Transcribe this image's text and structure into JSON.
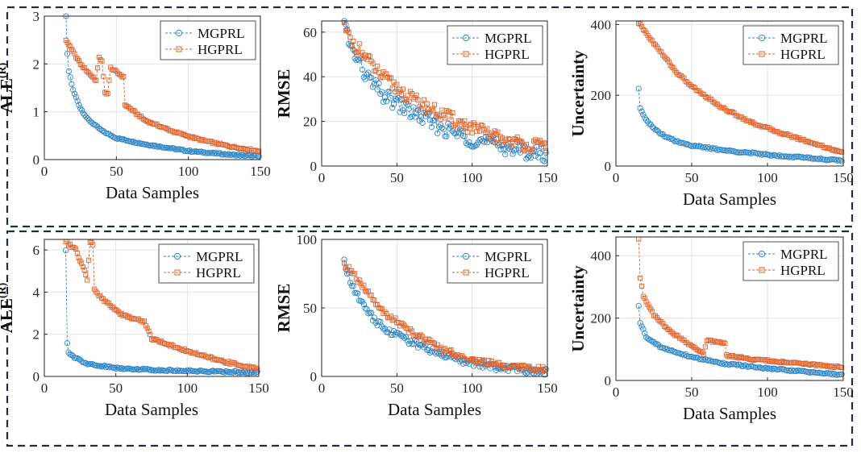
{
  "colors": {
    "mgprl": "#2e86c8",
    "hgprl": "#e0622a",
    "grid": "#e3e3e3",
    "frame": "#1e2d3d"
  },
  "sub_label": "(R)",
  "chart_data": [
    {
      "type": "scatter",
      "row": 0,
      "col": 0,
      "xlabel": "Data Samples",
      "ylabel": "ALE",
      "ylabel_sup": "(R)",
      "xlim": [
        0,
        150
      ],
      "ylim": [
        0,
        3
      ],
      "xticks": [
        "0",
        "50",
        "100",
        "150"
      ],
      "yticks": [
        "0",
        "1",
        "2",
        "3"
      ],
      "xtick_values": [
        0,
        50,
        100,
        150
      ],
      "ytick_values": [
        0,
        1,
        2,
        3
      ],
      "legend": [
        "MGPRL",
        "HGPRL"
      ],
      "legend_position": "top-right",
      "series": [
        {
          "name": "MGPRL",
          "x_start": 15,
          "x_end": 149,
          "keypoints": [
            [
              15,
              3.0
            ],
            [
              16,
              2.2
            ],
            [
              17,
              1.85
            ],
            [
              20,
              1.45
            ],
            [
              25,
              1.08
            ],
            [
              30,
              0.85
            ],
            [
              40,
              0.6
            ],
            [
              50,
              0.45
            ],
            [
              70,
              0.32
            ],
            [
              100,
              0.18
            ],
            [
              130,
              0.1
            ],
            [
              149,
              0.07
            ]
          ],
          "noise": 0.015
        },
        {
          "name": "HGPRL",
          "x_start": 15,
          "x_end": 149,
          "keypoints": [
            [
              15,
              2.5
            ],
            [
              25,
              2.0
            ],
            [
              36,
              1.65
            ],
            [
              38,
              2.15
            ],
            [
              40,
              2.05
            ],
            [
              42,
              1.4
            ],
            [
              44,
              1.38
            ],
            [
              46,
              1.92
            ],
            [
              55,
              1.72
            ],
            [
              56,
              1.15
            ],
            [
              70,
              0.82
            ],
            [
              90,
              0.58
            ],
            [
              110,
              0.4
            ],
            [
              130,
              0.27
            ],
            [
              149,
              0.18
            ]
          ],
          "noise": 0.02
        }
      ]
    },
    {
      "type": "scatter",
      "row": 0,
      "col": 1,
      "xlabel": "",
      "ylabel": "RMSE",
      "ylabel_sup": "",
      "xlim": [
        0,
        150
      ],
      "ylim": [
        0,
        65
      ],
      "xticks": [
        "0",
        "50",
        "100",
        "150"
      ],
      "yticks": [
        "0",
        "20",
        "40",
        "60"
      ],
      "xtick_values": [
        0,
        50,
        100,
        150
      ],
      "ytick_values": [
        0,
        20,
        40,
        60
      ],
      "legend": [
        "MGPRL",
        "HGPRL"
      ],
      "legend_position": "top-right",
      "series": [
        {
          "name": "MGPRL",
          "x_start": 15,
          "x_end": 149,
          "keypoints": [
            [
              15,
              64
            ],
            [
              20,
              52
            ],
            [
              30,
              40
            ],
            [
              40,
              32
            ],
            [
              60,
              24
            ],
            [
              80,
              17
            ],
            [
              100,
              12
            ],
            [
              120,
              9
            ],
            [
              140,
              6
            ],
            [
              149,
              5
            ]
          ],
          "noise": 3.5
        },
        {
          "name": "HGPRL",
          "x_start": 15,
          "x_end": 149,
          "keypoints": [
            [
              15,
              62
            ],
            [
              20,
              56
            ],
            [
              30,
              48
            ],
            [
              40,
              40
            ],
            [
              60,
              30
            ],
            [
              80,
              23
            ],
            [
              100,
              17
            ],
            [
              120,
              12
            ],
            [
              140,
              9
            ],
            [
              149,
              9
            ]
          ],
          "noise": 3.0
        }
      ]
    },
    {
      "type": "scatter",
      "row": 0,
      "col": 2,
      "xlabel": "Data Samples",
      "ylabel": "Uncertainty",
      "ylabel_sup": "",
      "xlim": [
        0,
        150
      ],
      "ylim": [
        0,
        410
      ],
      "xticks": [
        "0",
        "50",
        "100",
        "150"
      ],
      "yticks": [
        "0",
        "200",
        "400"
      ],
      "xtick_values": [
        0,
        50,
        100,
        150
      ],
      "ytick_values": [
        0,
        200,
        400
      ],
      "legend": [
        "MGPRL",
        "HGPRL"
      ],
      "legend_position": "top-right",
      "series": [
        {
          "name": "MGPRL",
          "x_start": 15,
          "x_end": 149,
          "keypoints": [
            [
              15,
              218
            ],
            [
              16,
              165
            ],
            [
              20,
              130
            ],
            [
              25,
              105
            ],
            [
              30,
              90
            ],
            [
              40,
              70
            ],
            [
              50,
              58
            ],
            [
              70,
              45
            ],
            [
              100,
              32
            ],
            [
              130,
              22
            ],
            [
              149,
              15
            ]
          ],
          "noise": 2.5
        },
        {
          "name": "HGPRL",
          "x_start": 15,
          "x_end": 149,
          "keypoints": [
            [
              15,
              405
            ],
            [
              20,
              375
            ],
            [
              30,
              320
            ],
            [
              40,
              265
            ],
            [
              50,
              225
            ],
            [
              70,
              165
            ],
            [
              90,
              122
            ],
            [
              110,
              92
            ],
            [
              130,
              65
            ],
            [
              149,
              38
            ]
          ],
          "noise": 3.0
        }
      ]
    },
    {
      "type": "scatter",
      "row": 1,
      "col": 0,
      "xlabel": "Data Samples",
      "ylabel": "ALE",
      "ylabel_sup": "(R)",
      "xlim": [
        0,
        150
      ],
      "ylim": [
        0,
        6.5
      ],
      "xticks": [
        "0",
        "50",
        "100",
        "150"
      ],
      "yticks": [
        "0",
        "2",
        "4",
        "6"
      ],
      "xtick_values": [
        0,
        50,
        100,
        150
      ],
      "ytick_values": [
        0,
        2,
        4,
        6
      ],
      "legend": [
        "MGPRL",
        "HGPRL"
      ],
      "legend_position": "top-right",
      "series": [
        {
          "name": "MGPRL",
          "x_start": 15,
          "x_end": 149,
          "keypoints": [
            [
              15,
              6.0
            ],
            [
              16,
              1.6
            ],
            [
              17,
              1.1
            ],
            [
              20,
              0.95
            ],
            [
              30,
              0.6
            ],
            [
              50,
              0.4
            ],
            [
              80,
              0.3
            ],
            [
              110,
              0.25
            ],
            [
              149,
              0.18
            ]
          ],
          "noise": 0.04
        },
        {
          "name": "HGPRL",
          "x_start": 15,
          "x_end": 149,
          "keypoints": [
            [
              15,
              6.4
            ],
            [
              22,
              6.0
            ],
            [
              28,
              5.0
            ],
            [
              30,
              4.6
            ],
            [
              32,
              6.4
            ],
            [
              34,
              6.3
            ],
            [
              35,
              4.1
            ],
            [
              40,
              3.7
            ],
            [
              55,
              2.9
            ],
            [
              70,
              2.6
            ],
            [
              75,
              1.8
            ],
            [
              100,
              1.2
            ],
            [
              120,
              0.8
            ],
            [
              149,
              0.35
            ]
          ],
          "noise": 0.06
        }
      ]
    },
    {
      "type": "scatter",
      "row": 1,
      "col": 1,
      "xlabel": "Data Samples",
      "ylabel": "RMSE",
      "ylabel_sup": "",
      "xlim": [
        0,
        150
      ],
      "ylim": [
        0,
        100
      ],
      "xticks": [
        "0",
        "50",
        "100",
        "150"
      ],
      "yticks": [
        "0",
        "50",
        "100"
      ],
      "xtick_values": [
        0,
        50,
        100,
        150
      ],
      "ytick_values": [
        0,
        50,
        100
      ],
      "legend": [
        "MGPRL",
        "HGPRL"
      ],
      "legend_position": "top-right",
      "series": [
        {
          "name": "MGPRL",
          "x_start": 15,
          "x_end": 149,
          "keypoints": [
            [
              15,
              84
            ],
            [
              20,
              66
            ],
            [
              30,
              48
            ],
            [
              40,
              36
            ],
            [
              60,
              25
            ],
            [
              80,
              16
            ],
            [
              100,
              10
            ],
            [
              120,
              6
            ],
            [
              149,
              3
            ]
          ],
          "noise": 2.5
        },
        {
          "name": "HGPRL",
          "x_start": 15,
          "x_end": 149,
          "keypoints": [
            [
              15,
              82
            ],
            [
              20,
              76
            ],
            [
              30,
              62
            ],
            [
              40,
              48
            ],
            [
              60,
              32
            ],
            [
              80,
              20
            ],
            [
              100,
              12
            ],
            [
              120,
              8
            ],
            [
              149,
              5
            ]
          ],
          "noise": 2.0
        }
      ]
    },
    {
      "type": "scatter",
      "row": 1,
      "col": 2,
      "xlabel": "Data Samples",
      "ylabel": "Uncertainty",
      "ylabel_sup": "",
      "xlim": [
        0,
        150
      ],
      "ylim": [
        0,
        460
      ],
      "xticks": [
        "0",
        "50",
        "100",
        "150"
      ],
      "yticks": [
        "0",
        "200",
        "400"
      ],
      "xtick_values": [
        0,
        50,
        100,
        150
      ],
      "ytick_values": [
        0,
        200,
        400
      ],
      "legend": [
        "MGPRL",
        "HGPRL"
      ],
      "legend_position": "top-right",
      "series": [
        {
          "name": "MGPRL",
          "x_start": 15,
          "x_end": 149,
          "keypoints": [
            [
              15,
              238
            ],
            [
              16,
              185
            ],
            [
              20,
              140
            ],
            [
              30,
              105
            ],
            [
              50,
              75
            ],
            [
              70,
              55
            ],
            [
              100,
              38
            ],
            [
              130,
              26
            ],
            [
              149,
              18
            ]
          ],
          "noise": 2.5
        },
        {
          "name": "HGPRL",
          "x_start": 15,
          "x_end": 149,
          "keypoints": [
            [
              15,
              455
            ],
            [
              16,
              330
            ],
            [
              18,
              270
            ],
            [
              25,
              210
            ],
            [
              35,
              160
            ],
            [
              58,
              85
            ],
            [
              60,
              128
            ],
            [
              72,
              120
            ],
            [
              73,
              80
            ],
            [
              90,
              68
            ],
            [
              120,
              55
            ],
            [
              149,
              42
            ]
          ],
          "noise": 3.0
        }
      ]
    }
  ]
}
